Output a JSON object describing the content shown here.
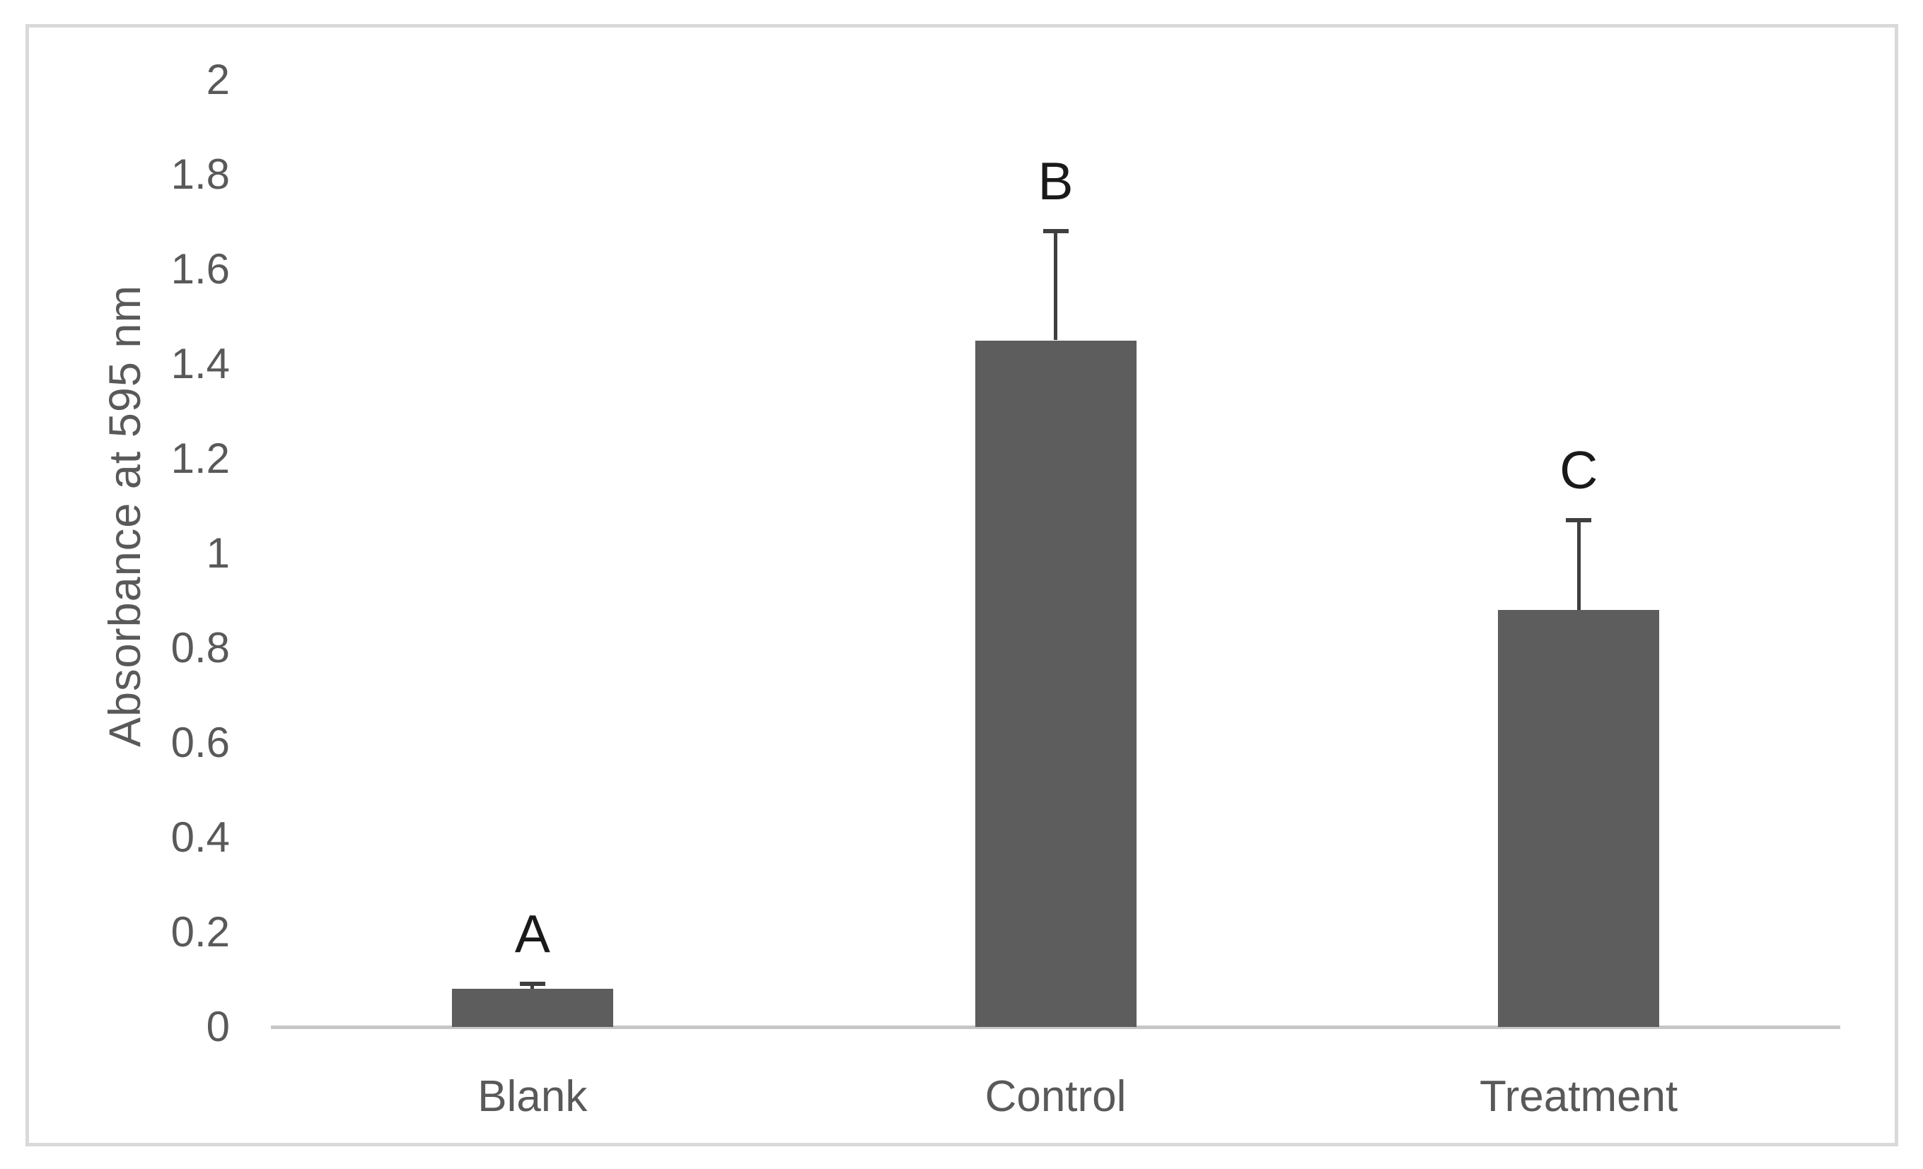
{
  "chart_data": {
    "type": "bar",
    "title": "",
    "categories": [
      "Blank",
      "Control",
      "Treatment"
    ],
    "values": [
      0.08,
      1.45,
      0.88
    ],
    "errors_upper": [
      0.011,
      0.23,
      0.19
    ],
    "error_bars": "upper-only",
    "significance_letters": [
      "A",
      "B",
      "C"
    ],
    "ylabel": "Absorbance at 595 nm",
    "xlabel": "",
    "ylim": [
      0,
      2
    ],
    "ytick_step": 0.2,
    "ytick_labels": [
      "0",
      "0.2",
      "0.4",
      "0.6",
      "0.8",
      "1",
      "1.2",
      "1.4",
      "1.6",
      "1.8",
      "2"
    ],
    "grid": false,
    "legend": false,
    "colors": {
      "bar_fill": "#5d5d5d",
      "error_bar": "#3f3f3f",
      "significance_letter": "#1a1a1a",
      "axis_text": "#595959",
      "axis_line": "#c6c6c6",
      "frame_border": "#d9d9d9",
      "background": "#ffffff"
    }
  }
}
